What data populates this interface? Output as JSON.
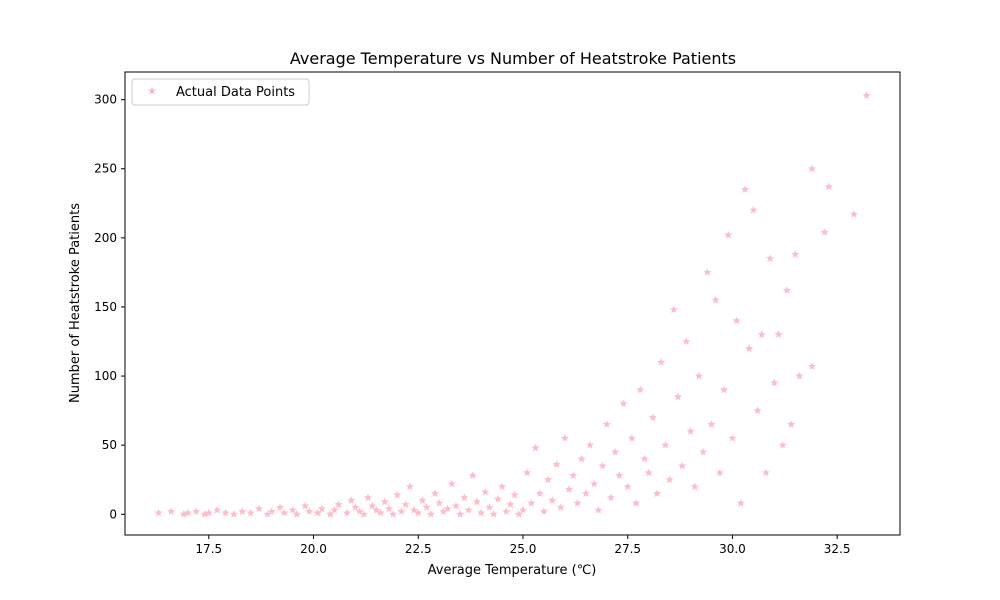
{
  "chart_data": {
    "type": "scatter",
    "title": "Average Temperature vs Number of Heatstroke Patients",
    "xlabel": "Average Temperature (℃)",
    "ylabel": "Number of Heatstroke Patients",
    "xlim": [
      15.5,
      34.0
    ],
    "ylim": [
      -15,
      320
    ],
    "xticks": [
      17.5,
      20.0,
      22.5,
      25.0,
      27.5,
      30.0,
      32.5
    ],
    "xtick_labels": [
      "17.5",
      "20.0",
      "22.5",
      "25.0",
      "27.5",
      "30.0",
      "32.5"
    ],
    "yticks": [
      0,
      50,
      100,
      150,
      200,
      250,
      300
    ],
    "ytick_labels": [
      "0",
      "50",
      "100",
      "150",
      "200",
      "250",
      "300"
    ],
    "grid": false,
    "legend_position": "upper-left",
    "marker": "star",
    "series": [
      {
        "name": "Actual Data Points",
        "color": "#ffb6c1",
        "points": [
          [
            16.3,
            1
          ],
          [
            16.6,
            2
          ],
          [
            16.9,
            0
          ],
          [
            17.0,
            1
          ],
          [
            17.2,
            2
          ],
          [
            17.4,
            0
          ],
          [
            17.5,
            1
          ],
          [
            17.7,
            3
          ],
          [
            17.9,
            1
          ],
          [
            18.1,
            0
          ],
          [
            18.3,
            2
          ],
          [
            18.5,
            1
          ],
          [
            18.7,
            4
          ],
          [
            18.9,
            0
          ],
          [
            19.0,
            2
          ],
          [
            19.2,
            5
          ],
          [
            19.3,
            1
          ],
          [
            19.5,
            3
          ],
          [
            19.6,
            0
          ],
          [
            19.8,
            6
          ],
          [
            19.9,
            2
          ],
          [
            20.1,
            1
          ],
          [
            20.2,
            4
          ],
          [
            20.4,
            0
          ],
          [
            20.5,
            3
          ],
          [
            20.6,
            7
          ],
          [
            20.8,
            1
          ],
          [
            20.9,
            10
          ],
          [
            21.0,
            5
          ],
          [
            21.1,
            2
          ],
          [
            21.2,
            0
          ],
          [
            21.3,
            12
          ],
          [
            21.4,
            6
          ],
          [
            21.5,
            3
          ],
          [
            21.6,
            1
          ],
          [
            21.7,
            9
          ],
          [
            21.8,
            4
          ],
          [
            21.9,
            0
          ],
          [
            22.0,
            14
          ],
          [
            22.1,
            2
          ],
          [
            22.2,
            7
          ],
          [
            22.3,
            20
          ],
          [
            22.4,
            3
          ],
          [
            22.5,
            1
          ],
          [
            22.6,
            10
          ],
          [
            22.7,
            5
          ],
          [
            22.8,
            0
          ],
          [
            22.9,
            15
          ],
          [
            23.0,
            8
          ],
          [
            23.1,
            2
          ],
          [
            23.2,
            4
          ],
          [
            23.3,
            22
          ],
          [
            23.4,
            6
          ],
          [
            23.5,
            0
          ],
          [
            23.6,
            12
          ],
          [
            23.7,
            3
          ],
          [
            23.8,
            28
          ],
          [
            23.9,
            9
          ],
          [
            24.0,
            1
          ],
          [
            24.1,
            16
          ],
          [
            24.2,
            5
          ],
          [
            24.3,
            0
          ],
          [
            24.4,
            11
          ],
          [
            24.5,
            20
          ],
          [
            24.6,
            2
          ],
          [
            24.7,
            7
          ],
          [
            24.8,
            14
          ],
          [
            24.9,
            0
          ],
          [
            25.0,
            3
          ],
          [
            25.1,
            30
          ],
          [
            25.2,
            8
          ],
          [
            25.3,
            48
          ],
          [
            25.4,
            15
          ],
          [
            25.5,
            2
          ],
          [
            25.6,
            25
          ],
          [
            25.7,
            10
          ],
          [
            25.8,
            36
          ],
          [
            25.9,
            5
          ],
          [
            26.0,
            55
          ],
          [
            26.1,
            18
          ],
          [
            26.2,
            28
          ],
          [
            26.3,
            8
          ],
          [
            26.4,
            40
          ],
          [
            26.5,
            15
          ],
          [
            26.6,
            50
          ],
          [
            26.7,
            22
          ],
          [
            26.8,
            3
          ],
          [
            26.9,
            35
          ],
          [
            27.0,
            65
          ],
          [
            27.1,
            12
          ],
          [
            27.2,
            45
          ],
          [
            27.3,
            28
          ],
          [
            27.4,
            80
          ],
          [
            27.5,
            20
          ],
          [
            27.6,
            55
          ],
          [
            27.7,
            8
          ],
          [
            27.8,
            90
          ],
          [
            27.9,
            40
          ],
          [
            28.0,
            30
          ],
          [
            28.1,
            70
          ],
          [
            28.2,
            15
          ],
          [
            28.3,
            110
          ],
          [
            28.4,
            50
          ],
          [
            28.5,
            25
          ],
          [
            28.6,
            148
          ],
          [
            28.7,
            85
          ],
          [
            28.8,
            35
          ],
          [
            28.9,
            125
          ],
          [
            29.0,
            60
          ],
          [
            29.1,
            20
          ],
          [
            29.2,
            100
          ],
          [
            29.3,
            45
          ],
          [
            29.4,
            175
          ],
          [
            29.5,
            65
          ],
          [
            29.6,
            155
          ],
          [
            29.7,
            30
          ],
          [
            29.8,
            90
          ],
          [
            29.9,
            202
          ],
          [
            30.0,
            55
          ],
          [
            30.1,
            140
          ],
          [
            30.2,
            8
          ],
          [
            30.3,
            235
          ],
          [
            30.4,
            120
          ],
          [
            30.5,
            220
          ],
          [
            30.6,
            75
          ],
          [
            30.7,
            130
          ],
          [
            30.8,
            30
          ],
          [
            30.9,
            185
          ],
          [
            31.0,
            95
          ],
          [
            31.1,
            130
          ],
          [
            31.2,
            50
          ],
          [
            31.3,
            162
          ],
          [
            31.4,
            65
          ],
          [
            31.5,
            188
          ],
          [
            31.6,
            100
          ],
          [
            31.9,
            250
          ],
          [
            31.9,
            107
          ],
          [
            32.2,
            204
          ],
          [
            32.3,
            237
          ],
          [
            32.9,
            217
          ],
          [
            33.2,
            303
          ]
        ]
      }
    ]
  }
}
